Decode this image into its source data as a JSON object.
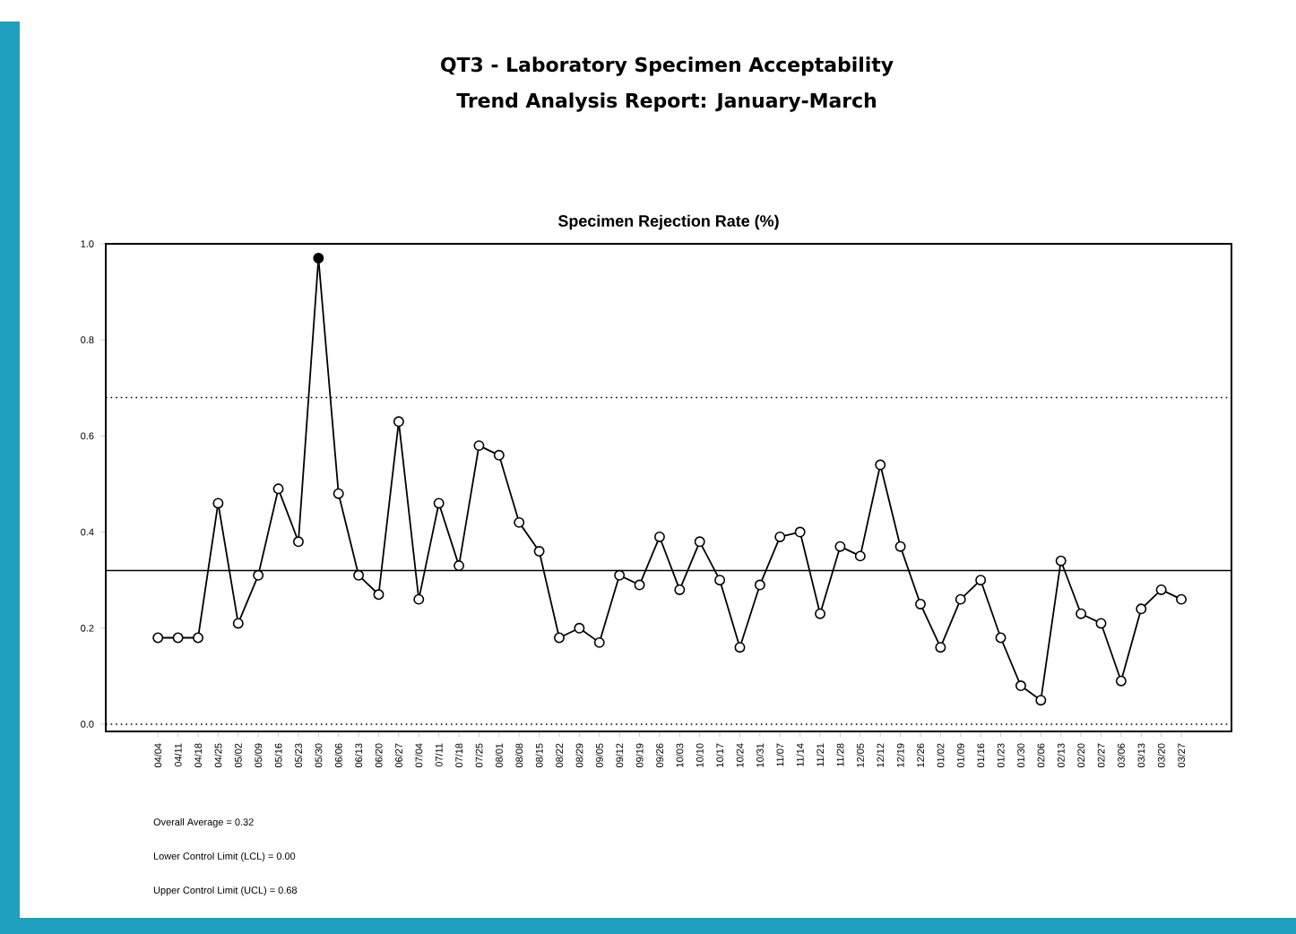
{
  "chart_data": {
    "type": "line",
    "title": "QT3 - Laboratory Specimen Acceptability",
    "subtitle": "Trend Analysis Report: January-March",
    "annotations": [
      "Specimen Rejection Rate (%)",
      "Overall Average = 0.32",
      "Lower Control Limit (LCL) = 0.00",
      "Upper Control Limit (UCL) = 0.68"
    ],
    "categories": [
      "04/04",
      "04/11",
      "04/18",
      "04/25",
      "05/02",
      "05/09",
      "05/16",
      "05/23",
      "05/30",
      "06/06",
      "06/13",
      "06/20",
      "06/27",
      "07/04",
      "07/11",
      "07/18",
      "07/25",
      "08/01",
      "08/08",
      "08/15",
      "08/22",
      "08/29",
      "09/05",
      "09/12",
      "09/19",
      "09/26",
      "10/03",
      "10/10",
      "10/17",
      "10/24",
      "10/31",
      "11/07",
      "11/14",
      "11/21",
      "11/28",
      "12/05",
      "12/12",
      "12/19",
      "12/26",
      "01/02",
      "01/09",
      "01/16",
      "01/23",
      "01/30",
      "02/06",
      "02/13",
      "02/20",
      "02/27",
      "03/06",
      "03/13",
      "03/20",
      "03/27"
    ],
    "series": [
      {
        "color": "#000000",
        "values": [
          0.18,
          0.18,
          0.18,
          0.46,
          0.21,
          0.31,
          0.49,
          0.38,
          0.97,
          0.48,
          0.31,
          0.27,
          0.63,
          0.26,
          0.46,
          0.33,
          0.58,
          0.56,
          0.42,
          0.36,
          0.18,
          0.2,
          0.17,
          0.31,
          0.29,
          0.39,
          0.28,
          0.38,
          0.3,
          0.16,
          0.29,
          0.39,
          0.4,
          0.23,
          0.37,
          0.35,
          0.54,
          0.37,
          0.25,
          0.16,
          0.26,
          0.3,
          0.18,
          0.08,
          0.05,
          0.34,
          0.23,
          0.21,
          0.09,
          0.24,
          0.28,
          0.26
        ],
        "colors": [
          "#ffffff",
          "#ffffff",
          "#ffffff",
          "#ffffff",
          "#ffffff",
          "#ffffff",
          "#ffffff",
          "#ffffff",
          "#000000",
          "#ffffff",
          "#ffffff",
          "#ffffff",
          "#ffffff",
          "#ffffff",
          "#ffffff",
          "#ffffff",
          "#ffffff",
          "#ffffff",
          "#ffffff",
          "#ffffff",
          "#ffffff",
          "#ffffff",
          "#ffffff",
          "#ffffff",
          "#ffffff",
          "#ffffff",
          "#ffffff",
          "#ffffff",
          "#ffffff",
          "#ffffff",
          "#ffffff",
          "#ffffff",
          "#ffffff",
          "#ffffff",
          "#ffffff",
          "#ffffff",
          "#ffffff",
          "#ffffff",
          "#ffffff",
          "#ffffff",
          "#ffffff",
          "#ffffff",
          "#ffffff",
          "#ffffff",
          "#ffffff",
          "#ffffff",
          "#ffffff",
          "#ffffff",
          "#ffffff",
          "#ffffff",
          "#ffffff",
          "#ffffff"
        ]
      }
    ],
    "ylim": [
      -0.015,
      1.0
    ],
    "yticks": [
      {
        "value": 0,
        "label": "0.0"
      },
      {
        "value": 0.2,
        "label": "0.2"
      },
      {
        "value": 0.4,
        "label": "0.4"
      },
      {
        "value": 0.6,
        "label": "0.6"
      },
      {
        "value": 0.8,
        "label": "0.8"
      },
      {
        "value": 1.0,
        "label": "1.0"
      }
    ],
    "ref_lines": [
      {
        "axis": "y",
        "value": 0.32,
        "line_style": "solid"
      },
      {
        "axis": "y",
        "value": 0.68,
        "line_style": "dotted"
      },
      {
        "axis": "y",
        "value": 0.0,
        "line_style": "dotted"
      }
    ],
    "grid": false,
    "marker": "circle",
    "line_style": "solid"
  }
}
